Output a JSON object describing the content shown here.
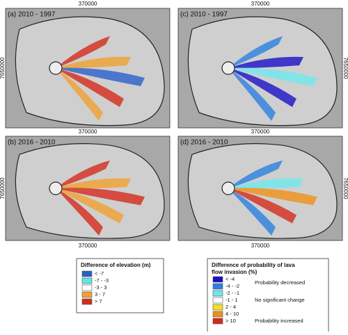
{
  "panels": [
    {
      "label": "(a) 2010 - 1997",
      "x_tick": "370000",
      "y_tick": "7650000"
    },
    {
      "label": "(c) 2010 - 1997",
      "x_tick": "370000",
      "y_tick": "7650000"
    },
    {
      "label": "(b) 2016 - 2010",
      "x_tick": "370000",
      "y_tick": "7650000"
    },
    {
      "label": "(d) 2016 - 2010",
      "x_tick": "370000",
      "y_tick": "7650000"
    }
  ],
  "bottom_x_ticks": [
    "370000",
    "370000"
  ],
  "legends": [
    {
      "title": "Difference of elevation (m)",
      "items": [
        {
          "label": "< -7",
          "color": "#2a5fc9"
        },
        {
          "label": "-7 - -3",
          "color": "#5ee6e6"
        },
        {
          "label": "-3 - 3",
          "color": "#ffffff"
        },
        {
          "label": "3 - 7",
          "color": "#f0a030"
        },
        {
          "label": "> 7",
          "color": "#d42a1a"
        }
      ]
    },
    {
      "title": "Difference of probability of lava flow invasion (%)",
      "items": [
        {
          "label": "< -4",
          "color": "#1a10c8"
        },
        {
          "label": "-4 - -2",
          "color": "#2a80e0"
        },
        {
          "label": "-2 - -1",
          "color": "#6ee8ee"
        },
        {
          "label": "-1 - 1",
          "color": "#ffffff"
        },
        {
          "label": "2 - 4",
          "color": "#f5e020"
        },
        {
          "label": "4 - 10",
          "color": "#f09018"
        },
        {
          "label": "> 10",
          "color": "#d42a1a"
        }
      ],
      "notes": [
        "Probability decreased",
        "No significant change",
        "Probability increased"
      ]
    }
  ]
}
